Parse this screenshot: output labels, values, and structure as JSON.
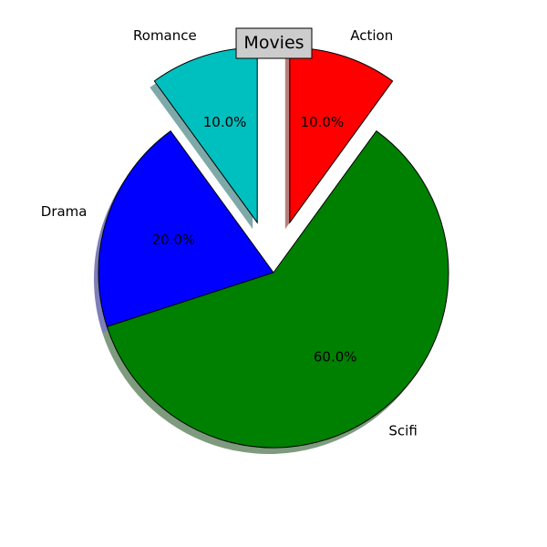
{
  "chart_data": {
    "type": "pie",
    "title": "Movies",
    "categories": [
      "Romance",
      "Drama",
      "Scifi",
      "Action"
    ],
    "values": [
      10,
      20,
      60,
      10
    ],
    "percent_labels": [
      "10.0%",
      "20.0%",
      "60.0%",
      "10.0%"
    ],
    "colors": [
      "#00bfbf",
      "#0000ff",
      "#008000",
      "#ff0000"
    ],
    "exploded": [
      true,
      false,
      false,
      true
    ],
    "start_angle_deg": 90,
    "direction": "counterclockwise",
    "shadow": true,
    "title_box_color": "#cccccc"
  }
}
